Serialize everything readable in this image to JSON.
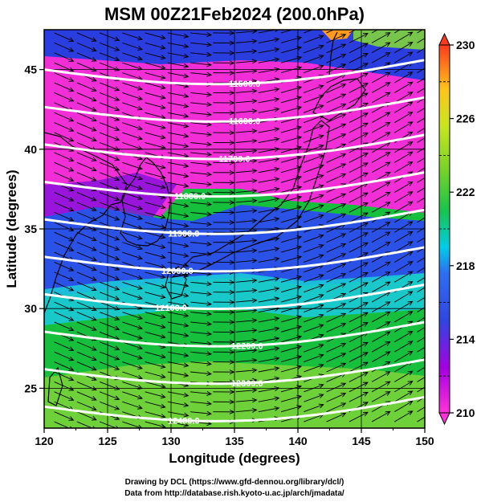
{
  "chart_data": {
    "type": "heatmap",
    "title": "MSM 00Z21Feb2024 (200.0hPa)",
    "xlabel": "Longitude (degrees)",
    "ylabel": "Latitude  (degrees)",
    "xlim": [
      120,
      150
    ],
    "ylim": [
      22.5,
      47.5
    ],
    "xticks": [
      "120",
      "125",
      "130",
      "135",
      "140",
      "145",
      "150"
    ],
    "yticks": [
      "25",
      "30",
      "35",
      "40",
      "45"
    ],
    "grid": true,
    "colorbar": {
      "range": [
        210,
        230
      ],
      "ticks": [
        "210",
        "214",
        "218",
        "222",
        "226",
        "230"
      ],
      "palette": [
        "#ff33d9",
        "#a600e0",
        "#3046e0",
        "#00cde8",
        "#19c44b",
        "#77d22a",
        "#c9e61f",
        "#ffc41a",
        "#ff3a1e"
      ]
    },
    "contours": [
      {
        "label": "11500.0",
        "value": 11500
      },
      {
        "label": "11600.0",
        "value": 11600
      },
      {
        "label": "11700.0",
        "value": 11700
      },
      {
        "label": "11800.0",
        "value": 11800
      },
      {
        "label": "11900.0",
        "value": 11900
      },
      {
        "label": "12000.0",
        "value": 12000
      },
      {
        "label": "12100.0",
        "value": 12100
      },
      {
        "label": "12200.0",
        "value": 12200
      },
      {
        "label": "12300.0",
        "value": 12300
      },
      {
        "label": "12400.0",
        "value": 12400
      }
    ],
    "wind_vectors": "westerly",
    "colors": {
      "contour": "#ffffff",
      "vector": "#000000",
      "coast": "#000000"
    }
  },
  "footer": {
    "line1": "Drawing by DCL (https://www.gfd-dennou.org/library/dcl/)",
    "line2": "Data from http://database.rish.kyoto-u.ac.jp/arch/jmadata/"
  }
}
